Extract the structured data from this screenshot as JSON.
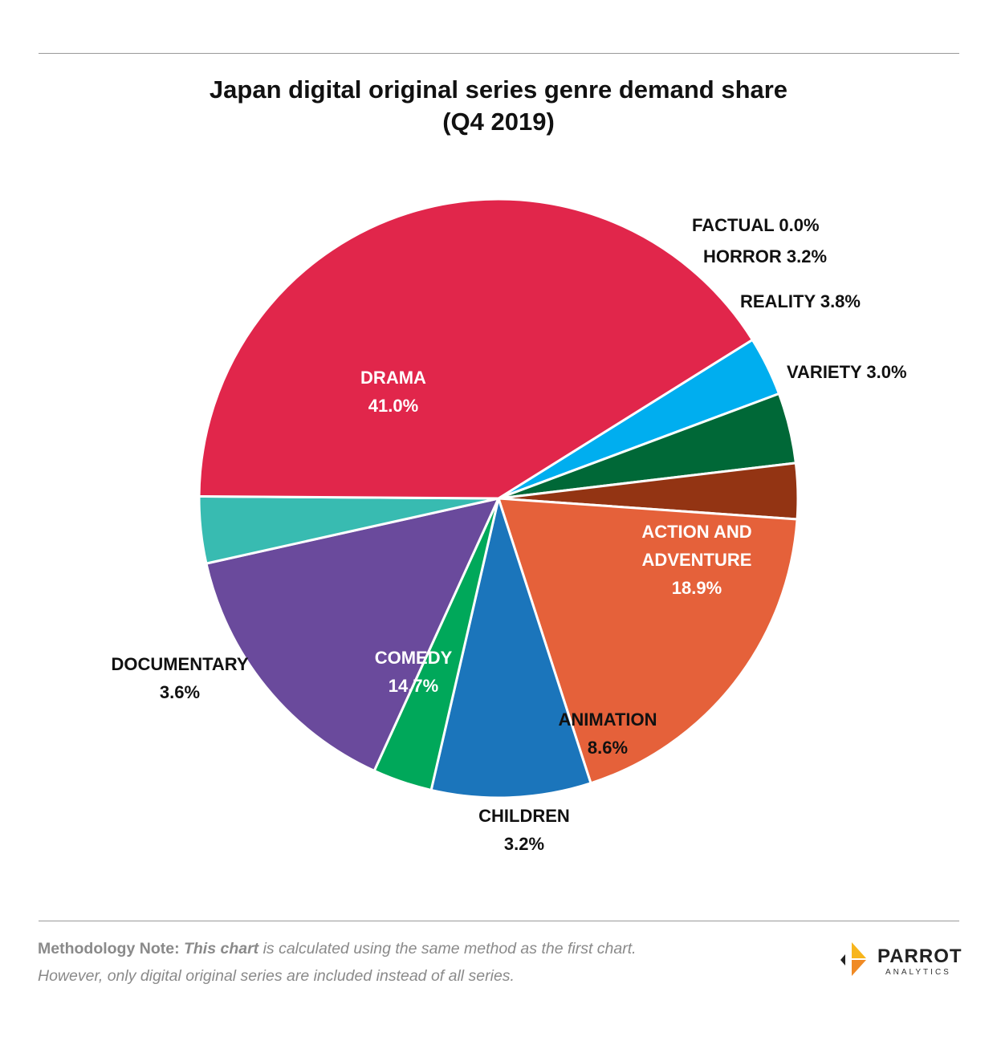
{
  "title_line1": "Japan digital original series genre demand share",
  "title_line2": "(Q4 2019)",
  "chart_data": {
    "type": "pie",
    "title": "Japan digital original series genre demand share (Q4 2019)",
    "unit": "%",
    "slices": [
      {
        "label": "FACTUAL",
        "value": 0.0,
        "display": "FACTUAL 0.0%",
        "color": "#1a1a1a"
      },
      {
        "label": "HORROR",
        "value": 3.2,
        "display": "HORROR 3.2%",
        "color": "#00aeef"
      },
      {
        "label": "REALITY",
        "value": 3.8,
        "display": "REALITY 3.8%",
        "color": "#006837"
      },
      {
        "label": "VARIETY",
        "value": 3.0,
        "display": "VARIETY 3.0%",
        "color": "#933413"
      },
      {
        "label": "ACTION AND ADVENTURE",
        "value": 18.9,
        "display_lines": [
          "ACTION AND",
          "ADVENTURE",
          "18.9%"
        ],
        "color": "#e5613a"
      },
      {
        "label": "ANIMATION",
        "value": 8.6,
        "display_lines": [
          "ANIMATION",
          "8.6%"
        ],
        "color": "#1b75bb"
      },
      {
        "label": "CHILDREN",
        "value": 3.2,
        "display_lines": [
          "CHILDREN",
          "3.2%"
        ],
        "color": "#00a85a"
      },
      {
        "label": "COMEDY",
        "value": 14.7,
        "display_lines": [
          "COMEDY",
          "14.7%"
        ],
        "color": "#6a4a9c"
      },
      {
        "label": "DOCUMENTARY",
        "value": 3.6,
        "display_lines": [
          "DOCUMENTARY",
          "3.6%"
        ],
        "color": "#38bbb1"
      },
      {
        "label": "DRAMA",
        "value": 41.0,
        "display_lines": [
          "DRAMA",
          "41.0%"
        ],
        "color": "#e1264b"
      }
    ]
  },
  "note": {
    "prefix": "Methodology Note: ",
    "emph": "This chart",
    "rest1": " is calculated using the same method as the first chart.",
    "line2": "However, only digital original series are included instead of all series."
  },
  "logo": {
    "word": "PARROT",
    "sub": "ANALYTICS",
    "colors": [
      "#f7b51c",
      "#f08a24",
      "#222222"
    ]
  }
}
